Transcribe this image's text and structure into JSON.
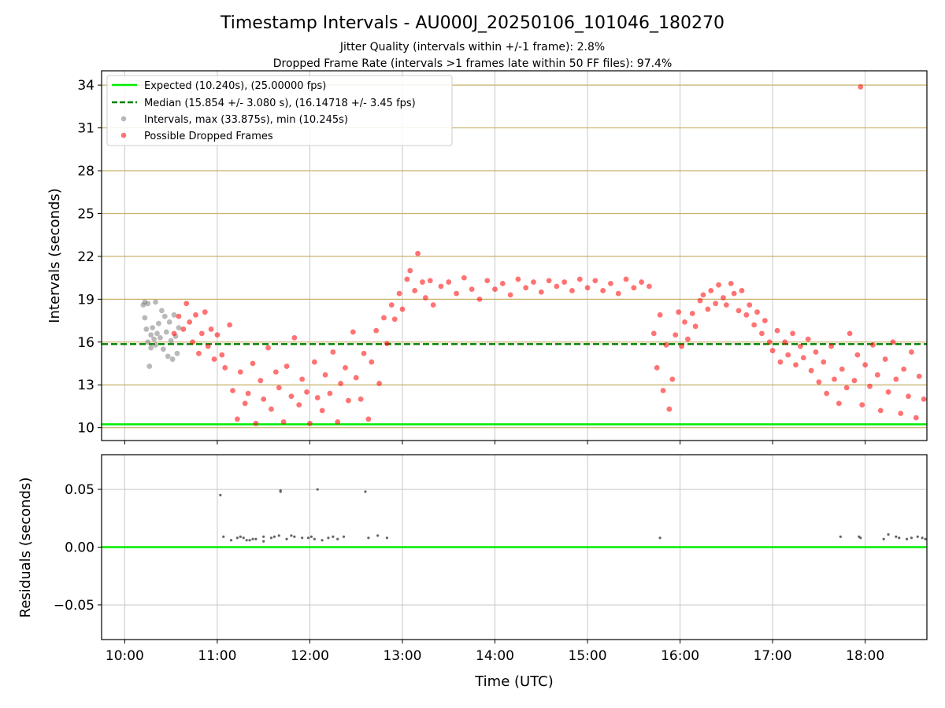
{
  "chart_data": [
    {
      "type": "scatter",
      "title": "Timestamp Intervals - AU000J_20250106_101046_180270",
      "subtitle_1": "Jitter Quality (intervals within +/-1 frame): 2.8%",
      "subtitle_2": "Dropped Frame Rate (intervals >1 frames late within 50 FF files): 97.4%",
      "xlabel": "",
      "ylabel": "Intervals (seconds)",
      "x_range": [
        "09:45",
        "18:40"
      ],
      "ylim": [
        9.1,
        35.0
      ],
      "yticks": [
        "10",
        "13",
        "16",
        "19",
        "22",
        "25",
        "28",
        "31",
        "34"
      ],
      "xticks": [
        "10:00",
        "11:00",
        "12:00",
        "13:00",
        "14:00",
        "15:00",
        "16:00",
        "17:00",
        "18:00"
      ],
      "grid": true,
      "legend_position": "top-left",
      "legend": [
        "Expected (10.240s), (25.00000 fps)",
        "Median (15.854 +/- 3.080 s), (16.14718 +/- 3.45 fps)",
        "Intervals, max (33.875s), min (10.245s)",
        "Possible Dropped Frames"
      ],
      "colors": {
        "expected": "#00ee00",
        "median": "#008000",
        "intervals": "#808080",
        "dropped": "#ff0000",
        "hgrid": "#c8b16a",
        "vgrid": "#c8c8c8"
      },
      "series": [
        {
          "name": "Expected (10.240s), (25.00000 fps)",
          "type": "hline",
          "y": 10.24
        },
        {
          "name": "Median (15.854 +/- 3.080 s), (16.14718 +/- 3.45 fps)",
          "type": "hline",
          "y": 15.854
        },
        {
          "name": "Intervals, max (33.875s), min (10.245s)",
          "type": "scatter",
          "points": [
            [
              "10:12",
              18.6
            ],
            [
              "10:13",
              18.8
            ],
            [
              "10:13",
              17.7
            ],
            [
              "10:14",
              16.9
            ],
            [
              "10:15",
              18.7
            ],
            [
              "10:15",
              16.0
            ],
            [
              "10:16",
              14.3
            ],
            [
              "10:17",
              16.5
            ],
            [
              "10:17",
              15.6
            ],
            [
              "10:18",
              17.0
            ],
            [
              "10:19",
              16.2
            ],
            [
              "10:20",
              18.8
            ],
            [
              "10:20",
              15.8
            ],
            [
              "10:21",
              16.6
            ],
            [
              "10:22",
              17.3
            ],
            [
              "10:23",
              16.3
            ],
            [
              "10:24",
              18.2
            ],
            [
              "10:25",
              15.5
            ],
            [
              "10:26",
              17.8
            ],
            [
              "10:27",
              16.7
            ],
            [
              "10:28",
              15.0
            ],
            [
              "10:29",
              17.4
            ],
            [
              "10:30",
              16.1
            ],
            [
              "10:31",
              14.8
            ],
            [
              "10:32",
              17.9
            ],
            [
              "10:33",
              16.4
            ],
            [
              "10:34",
              15.2
            ],
            [
              "10:35",
              17.0
            ]
          ]
        },
        {
          "name": "Possible Dropped Frames",
          "type": "scatter",
          "points": [
            [
              "10:32",
              16.6
            ],
            [
              "10:35",
              17.8
            ],
            [
              "10:38",
              16.9
            ],
            [
              "10:40",
              18.7
            ],
            [
              "10:42",
              17.4
            ],
            [
              "10:44",
              16.0
            ],
            [
              "10:46",
              17.9
            ],
            [
              "10:48",
              15.2
            ],
            [
              "10:50",
              16.6
            ],
            [
              "10:52",
              18.1
            ],
            [
              "10:54",
              15.7
            ],
            [
              "10:56",
              16.9
            ],
            [
              "10:58",
              14.8
            ],
            [
              "11:00",
              16.5
            ],
            [
              "11:03",
              15.1
            ],
            [
              "11:05",
              14.2
            ],
            [
              "11:08",
              17.2
            ],
            [
              "11:10",
              12.6
            ],
            [
              "11:13",
              10.6
            ],
            [
              "11:15",
              13.9
            ],
            [
              "11:18",
              11.7
            ],
            [
              "11:20",
              12.4
            ],
            [
              "11:23",
              14.5
            ],
            [
              "11:25",
              10.3
            ],
            [
              "11:28",
              13.3
            ],
            [
              "11:30",
              12.0
            ],
            [
              "11:33",
              15.6
            ],
            [
              "11:35",
              11.3
            ],
            [
              "11:38",
              13.9
            ],
            [
              "11:40",
              12.8
            ],
            [
              "11:43",
              10.4
            ],
            [
              "11:45",
              14.3
            ],
            [
              "11:48",
              12.2
            ],
            [
              "11:50",
              16.3
            ],
            [
              "11:53",
              11.6
            ],
            [
              "11:55",
              13.4
            ],
            [
              "11:58",
              12.5
            ],
            [
              "12:00",
              10.3
            ],
            [
              "12:03",
              14.6
            ],
            [
              "12:05",
              12.1
            ],
            [
              "12:08",
              11.2
            ],
            [
              "12:10",
              13.7
            ],
            [
              "12:13",
              12.4
            ],
            [
              "12:15",
              15.3
            ],
            [
              "12:18",
              10.4
            ],
            [
              "12:20",
              13.1
            ],
            [
              "12:23",
              14.2
            ],
            [
              "12:25",
              11.9
            ],
            [
              "12:28",
              16.7
            ],
            [
              "12:30",
              13.5
            ],
            [
              "12:33",
              12.0
            ],
            [
              "12:35",
              15.2
            ],
            [
              "12:38",
              10.6
            ],
            [
              "12:40",
              14.6
            ],
            [
              "12:43",
              16.8
            ],
            [
              "12:45",
              13.1
            ],
            [
              "12:48",
              17.7
            ],
            [
              "12:50",
              15.9
            ],
            [
              "12:53",
              18.6
            ],
            [
              "12:55",
              17.6
            ],
            [
              "12:58",
              19.4
            ],
            [
              "13:00",
              18.3
            ],
            [
              "13:03",
              20.4
            ],
            [
              "13:05",
              21.0
            ],
            [
              "13:08",
              19.6
            ],
            [
              "13:10",
              22.2
            ],
            [
              "13:13",
              20.2
            ],
            [
              "13:15",
              19.1
            ],
            [
              "13:18",
              20.3
            ],
            [
              "13:20",
              18.6
            ],
            [
              "13:25",
              19.9
            ],
            [
              "13:30",
              20.2
            ],
            [
              "13:35",
              19.4
            ],
            [
              "13:40",
              20.5
            ],
            [
              "13:45",
              19.7
            ],
            [
              "13:50",
              19.0
            ],
            [
              "13:55",
              20.3
            ],
            [
              "14:00",
              19.7
            ],
            [
              "14:05",
              20.1
            ],
            [
              "14:10",
              19.3
            ],
            [
              "14:15",
              20.4
            ],
            [
              "14:20",
              19.8
            ],
            [
              "14:25",
              20.2
            ],
            [
              "14:30",
              19.5
            ],
            [
              "14:35",
              20.3
            ],
            [
              "14:40",
              19.9
            ],
            [
              "14:45",
              20.2
            ],
            [
              "14:50",
              19.6
            ],
            [
              "14:55",
              20.4
            ],
            [
              "15:00",
              19.8
            ],
            [
              "15:05",
              20.3
            ],
            [
              "15:10",
              19.6
            ],
            [
              "15:15",
              20.1
            ],
            [
              "15:20",
              19.4
            ],
            [
              "15:25",
              20.4
            ],
            [
              "15:30",
              19.8
            ],
            [
              "15:35",
              20.2
            ],
            [
              "15:40",
              19.9
            ],
            [
              "15:43",
              16.6
            ],
            [
              "15:45",
              14.2
            ],
            [
              "15:47",
              17.9
            ],
            [
              "15:49",
              12.6
            ],
            [
              "15:51",
              15.8
            ],
            [
              "15:53",
              11.3
            ],
            [
              "15:55",
              13.4
            ],
            [
              "15:57",
              16.5
            ],
            [
              "15:59",
              18.1
            ],
            [
              "16:01",
              15.7
            ],
            [
              "16:03",
              17.4
            ],
            [
              "16:05",
              16.2
            ],
            [
              "16:08",
              18.0
            ],
            [
              "16:10",
              17.1
            ],
            [
              "16:13",
              18.9
            ],
            [
              "16:15",
              19.3
            ],
            [
              "16:18",
              18.3
            ],
            [
              "16:20",
              19.6
            ],
            [
              "16:23",
              18.7
            ],
            [
              "16:25",
              20.0
            ],
            [
              "16:28",
              19.1
            ],
            [
              "16:30",
              18.6
            ],
            [
              "16:33",
              20.1
            ],
            [
              "16:35",
              19.4
            ],
            [
              "16:38",
              18.2
            ],
            [
              "16:40",
              19.6
            ],
            [
              "16:43",
              17.9
            ],
            [
              "16:45",
              18.6
            ],
            [
              "16:48",
              17.2
            ],
            [
              "16:50",
              18.1
            ],
            [
              "16:53",
              16.6
            ],
            [
              "16:55",
              17.5
            ],
            [
              "16:58",
              16.0
            ],
            [
              "17:00",
              15.4
            ],
            [
              "17:03",
              16.8
            ],
            [
              "17:05",
              14.6
            ],
            [
              "17:08",
              16.0
            ],
            [
              "17:10",
              15.1
            ],
            [
              "17:13",
              16.6
            ],
            [
              "17:15",
              14.4
            ],
            [
              "17:18",
              15.7
            ],
            [
              "17:20",
              14.9
            ],
            [
              "17:23",
              16.2
            ],
            [
              "17:25",
              14.0
            ],
            [
              "17:28",
              15.3
            ],
            [
              "17:30",
              13.2
            ],
            [
              "17:33",
              14.6
            ],
            [
              "17:35",
              12.4
            ],
            [
              "17:38",
              15.7
            ],
            [
              "17:40",
              13.4
            ],
            [
              "17:43",
              11.7
            ],
            [
              "17:45",
              14.1
            ],
            [
              "17:48",
              12.8
            ],
            [
              "17:50",
              16.6
            ],
            [
              "17:53",
              13.3
            ],
            [
              "17:55",
              15.1
            ],
            [
              "17:57",
              33.875
            ],
            [
              "17:58",
              11.6
            ],
            [
              "18:00",
              14.4
            ],
            [
              "18:03",
              12.9
            ],
            [
              "18:05",
              15.8
            ],
            [
              "18:08",
              13.7
            ],
            [
              "18:10",
              11.2
            ],
            [
              "18:13",
              14.8
            ],
            [
              "18:15",
              12.5
            ],
            [
              "18:18",
              16.0
            ],
            [
              "18:20",
              13.4
            ],
            [
              "18:23",
              11.0
            ],
            [
              "18:25",
              14.1
            ],
            [
              "18:28",
              12.2
            ],
            [
              "18:30",
              15.3
            ],
            [
              "18:33",
              10.7
            ],
            [
              "18:35",
              13.6
            ],
            [
              "18:38",
              12.0
            ]
          ]
        }
      ]
    },
    {
      "type": "scatter",
      "xlabel": "Time (UTC)",
      "ylabel": "Residuals (seconds)",
      "ylim": [
        -0.08,
        0.08
      ],
      "yticks": [
        "0.05",
        "0.00",
        "−0.05"
      ],
      "grid": true,
      "colors": {
        "zero_line": "#00ee00",
        "points": "#666666"
      },
      "series": [
        {
          "name": "",
          "type": "hline",
          "y": 0.0
        },
        {
          "name": "",
          "type": "scatter",
          "points": [
            [
              "11:02",
              0.045
            ],
            [
              "11:04",
              0.009
            ],
            [
              "11:09",
              0.006
            ],
            [
              "11:13",
              0.008
            ],
            [
              "11:15",
              0.009
            ],
            [
              "11:17",
              0.008
            ],
            [
              "11:19",
              0.006
            ],
            [
              "11:21",
              0.006
            ],
            [
              "11:23",
              0.007
            ],
            [
              "11:25",
              0.007
            ],
            [
              "11:30",
              0.005
            ],
            [
              "11:30",
              0.009
            ],
            [
              "11:35",
              0.008
            ],
            [
              "11:37",
              0.009
            ],
            [
              "11:40",
              0.01
            ],
            [
              "11:41",
              0.048
            ],
            [
              "11:41",
              0.049
            ],
            [
              "11:45",
              0.007
            ],
            [
              "11:48",
              0.01
            ],
            [
              "11:50",
              0.009
            ],
            [
              "11:55",
              0.008
            ],
            [
              "11:59",
              0.008
            ],
            [
              "12:01",
              0.009
            ],
            [
              "12:03",
              0.007
            ],
            [
              "12:05",
              0.05
            ],
            [
              "12:08",
              0.006
            ],
            [
              "12:12",
              0.008
            ],
            [
              "12:15",
              0.009
            ],
            [
              "12:18",
              0.007
            ],
            [
              "12:22",
              0.009
            ],
            [
              "12:36",
              0.048
            ],
            [
              "12:38",
              0.008
            ],
            [
              "12:44",
              0.01
            ],
            [
              "12:50",
              0.008
            ],
            [
              "15:47",
              0.008
            ],
            [
              "17:44",
              0.009
            ],
            [
              "17:56",
              0.009
            ],
            [
              "17:57",
              0.008
            ],
            [
              "18:12",
              0.007
            ],
            [
              "18:15",
              0.011
            ],
            [
              "18:20",
              0.009
            ],
            [
              "18:22",
              0.008
            ],
            [
              "18:27",
              0.007
            ],
            [
              "18:30",
              0.008
            ],
            [
              "18:34",
              0.009
            ],
            [
              "18:37",
              0.008
            ],
            [
              "18:39",
              0.007
            ]
          ]
        }
      ]
    }
  ]
}
